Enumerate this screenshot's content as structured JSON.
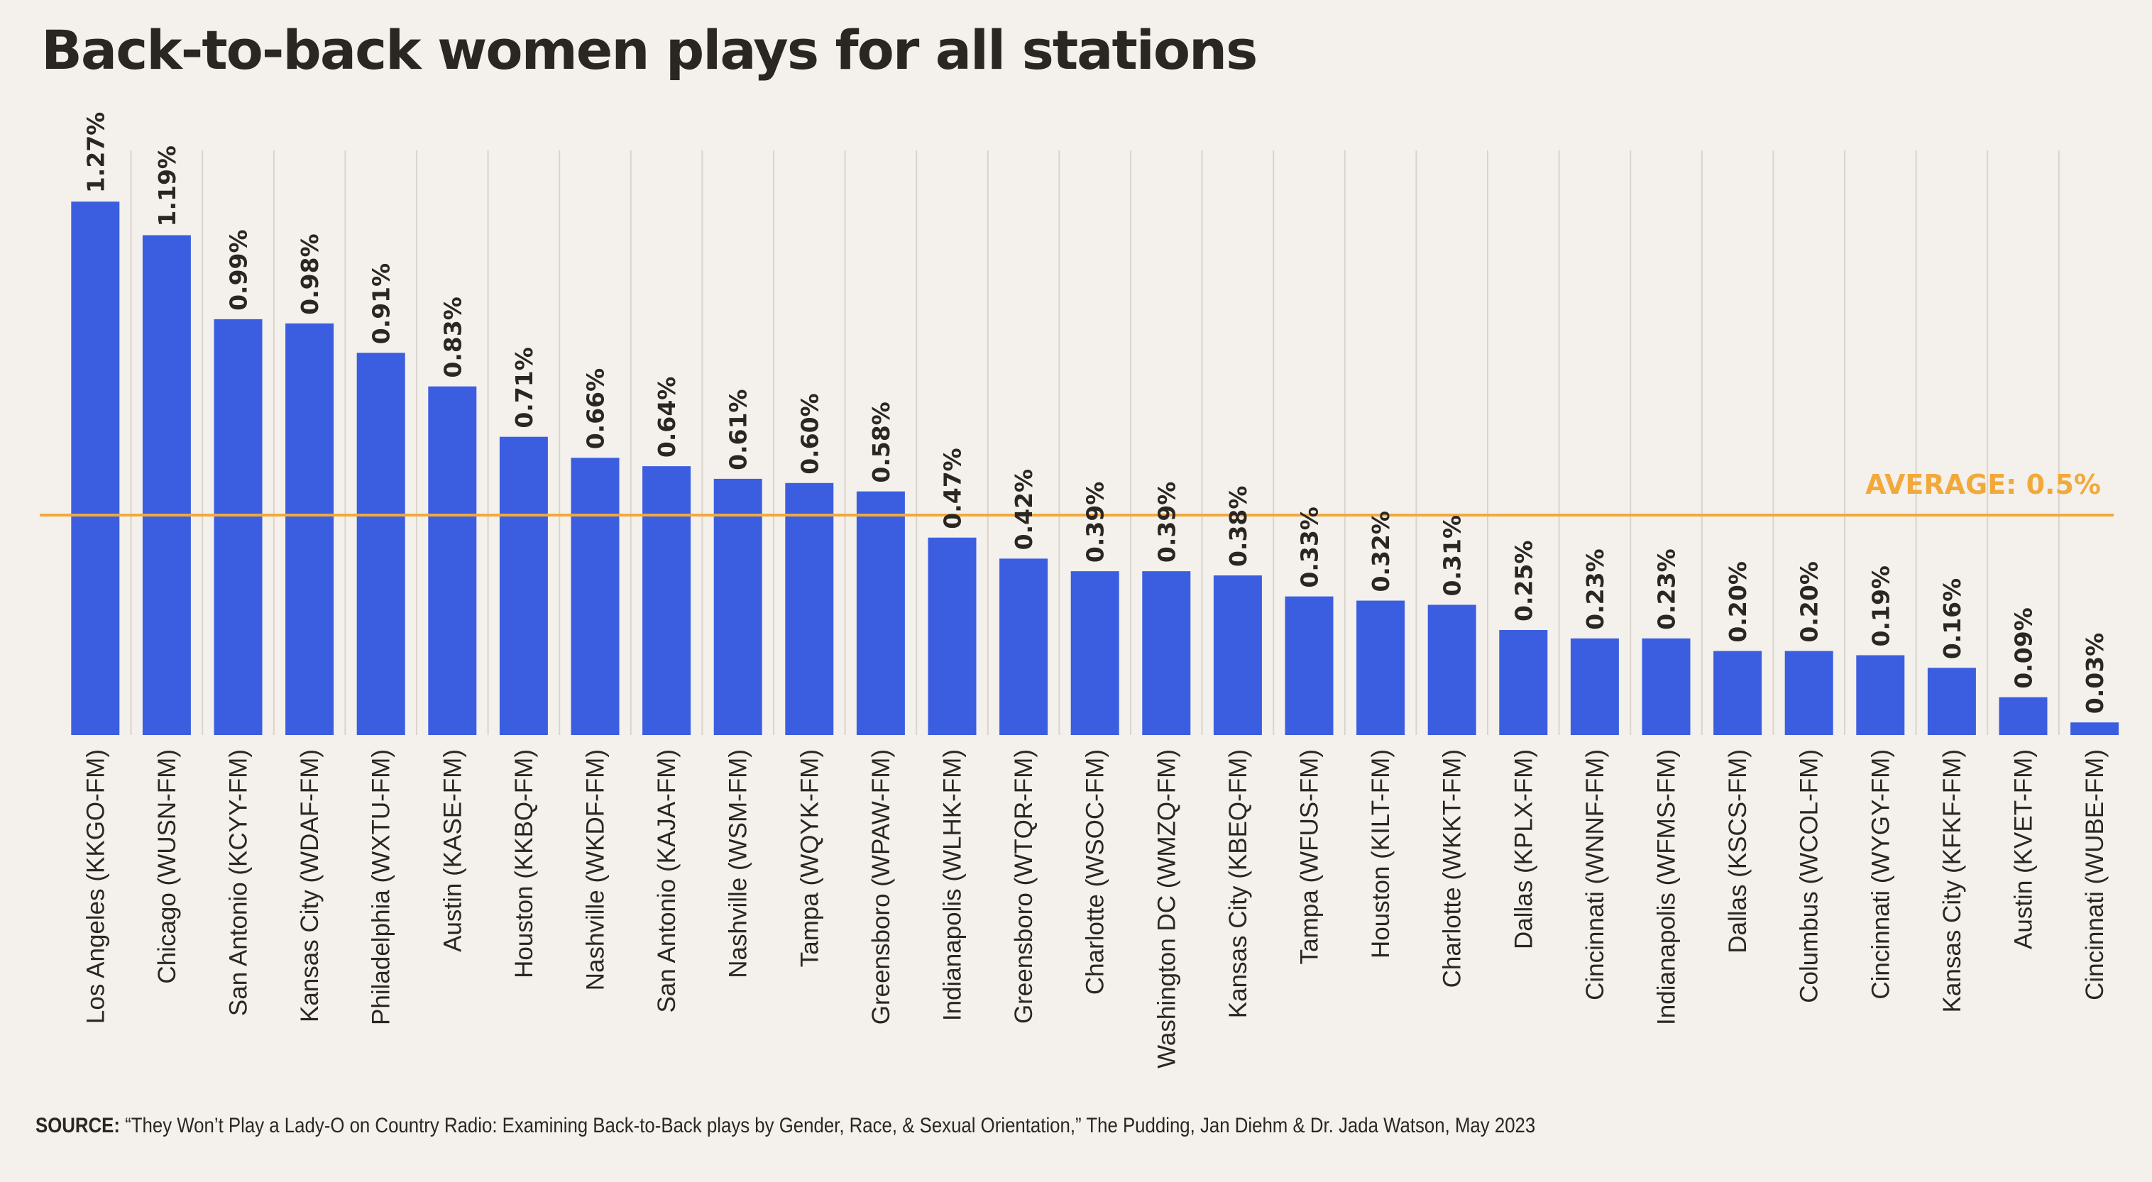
{
  "title": "Back-to-back women plays for all stations",
  "source": {
    "label": "SOURCE:",
    "text": "“They Won’t Play a Lady-O on Country Radio: Examining Back-to-Back plays by Gender, Race, & Sexual Orientation,” The Pudding, Jan Diehm & Dr. Jada Watson, May 2023"
  },
  "colors": {
    "background": "#f4f0eb",
    "bar": "#3b5ee0",
    "average_line": "#f2a93b",
    "text": "#2a2722",
    "gridline": "#d9d4cc"
  },
  "chart_data": {
    "type": "bar",
    "orientation": "vertical",
    "title": "Back-to-back women plays for all stations",
    "xlabel": "",
    "ylabel": "",
    "ylim": [
      0,
      1.27
    ],
    "grid": "vertical lines between categories",
    "legend": "none",
    "categories": [
      "Los Angeles (KKGO-FM)",
      "Chicago (WUSN-FM)",
      "San Antonio (KCYY-FM)",
      "Kansas City (WDAF-FM)",
      "Philadelphia (WXTU-FM)",
      "Austin (KASE-FM)",
      "Houston (KKBQ-FM)",
      "Nashville (WKDF-FM)",
      "San Antonio (KAJA-FM)",
      "Nashville (WSM-FM)",
      "Tampa (WQYK-FM)",
      "Greensboro (WPAW-FM)",
      "Indianapolis (WLHK-FM)",
      "Greensboro (WTQR-FM)",
      "Charlotte (WSOC-FM)",
      "Washington DC (WMZQ-FM)",
      "Kansas City (KBEQ-FM)",
      "Tampa (WFUS-FM)",
      "Houston (KILT-FM)",
      "Charlotte (WKKT-FM)",
      "Dallas (KPLX-FM)",
      "Cincinnati (WNNF-FM)",
      "Indianapolis (WFMS-FM)",
      "Dallas (KSCS-FM)",
      "Columbus (WCOL-FM)",
      "Cincinnati (WYGY-FM)",
      "Kansas City (KFKF-FM)",
      "Austin (KVET-FM)",
      "Cincinnati (WUBE-FM)"
    ],
    "values": [
      1.27,
      1.19,
      0.99,
      0.98,
      0.91,
      0.83,
      0.71,
      0.66,
      0.64,
      0.61,
      0.6,
      0.58,
      0.47,
      0.42,
      0.39,
      0.39,
      0.38,
      0.33,
      0.32,
      0.31,
      0.25,
      0.23,
      0.23,
      0.2,
      0.2,
      0.19,
      0.16,
      0.09,
      0.03
    ],
    "value_labels": [
      "1.27%",
      "1.19%",
      "0.99%",
      "0.98%",
      "0.91%",
      "0.83%",
      "0.71%",
      "0.66%",
      "0.64%",
      "0.61%",
      "0.60%",
      "0.58%",
      "0.47%",
      "0.42%",
      "0.39%",
      "0.39%",
      "0.38%",
      "0.33%",
      "0.32%",
      "0.31%",
      "0.25%",
      "0.23%",
      "0.23%",
      "0.20%",
      "0.20%",
      "0.19%",
      "0.16%",
      "0.09%",
      "0.03%"
    ],
    "average": {
      "value": 0.5,
      "label": "AVERAGE: 0.5%"
    }
  }
}
